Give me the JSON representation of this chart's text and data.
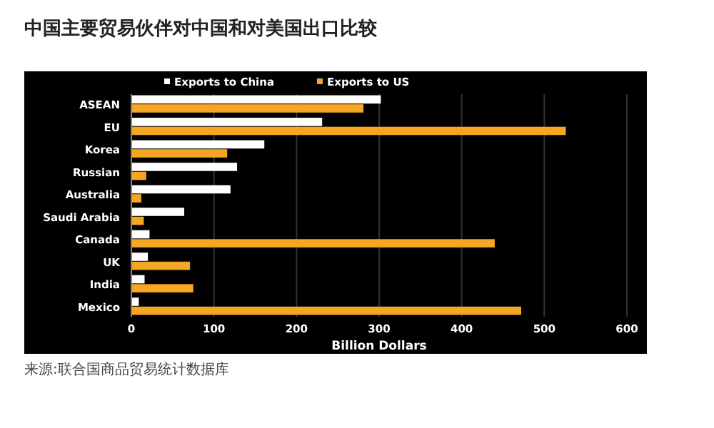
{
  "chart_data": {
    "type": "bar",
    "orientation": "horizontal",
    "title": "中国主要贸易伙伴对中国和对美国出口比较",
    "xlabel": "Billion Dollars",
    "categories": [
      "ASEAN",
      "EU",
      "Korea",
      "Russian",
      "Australia",
      "Saudi Arabia",
      "Canada",
      "UK",
      "India",
      "Mexico"
    ],
    "series": [
      {
        "name": "Exports to China",
        "color": "#ffffff",
        "values": [
          302,
          231,
          161,
          128,
          120,
          64,
          22,
          20,
          16,
          9
        ]
      },
      {
        "name": "Exports to US",
        "color": "#f5a623",
        "values": [
          281,
          526,
          116,
          18,
          12,
          15,
          440,
          71,
          75,
          472
        ]
      }
    ],
    "xlim": [
      0,
      600
    ],
    "xticks": [
      0,
      100,
      200,
      300,
      400,
      500,
      600
    ],
    "grid": "x",
    "legend": "top",
    "annotations": [
      "来源:联合国商品贸易统计数据库"
    ]
  }
}
